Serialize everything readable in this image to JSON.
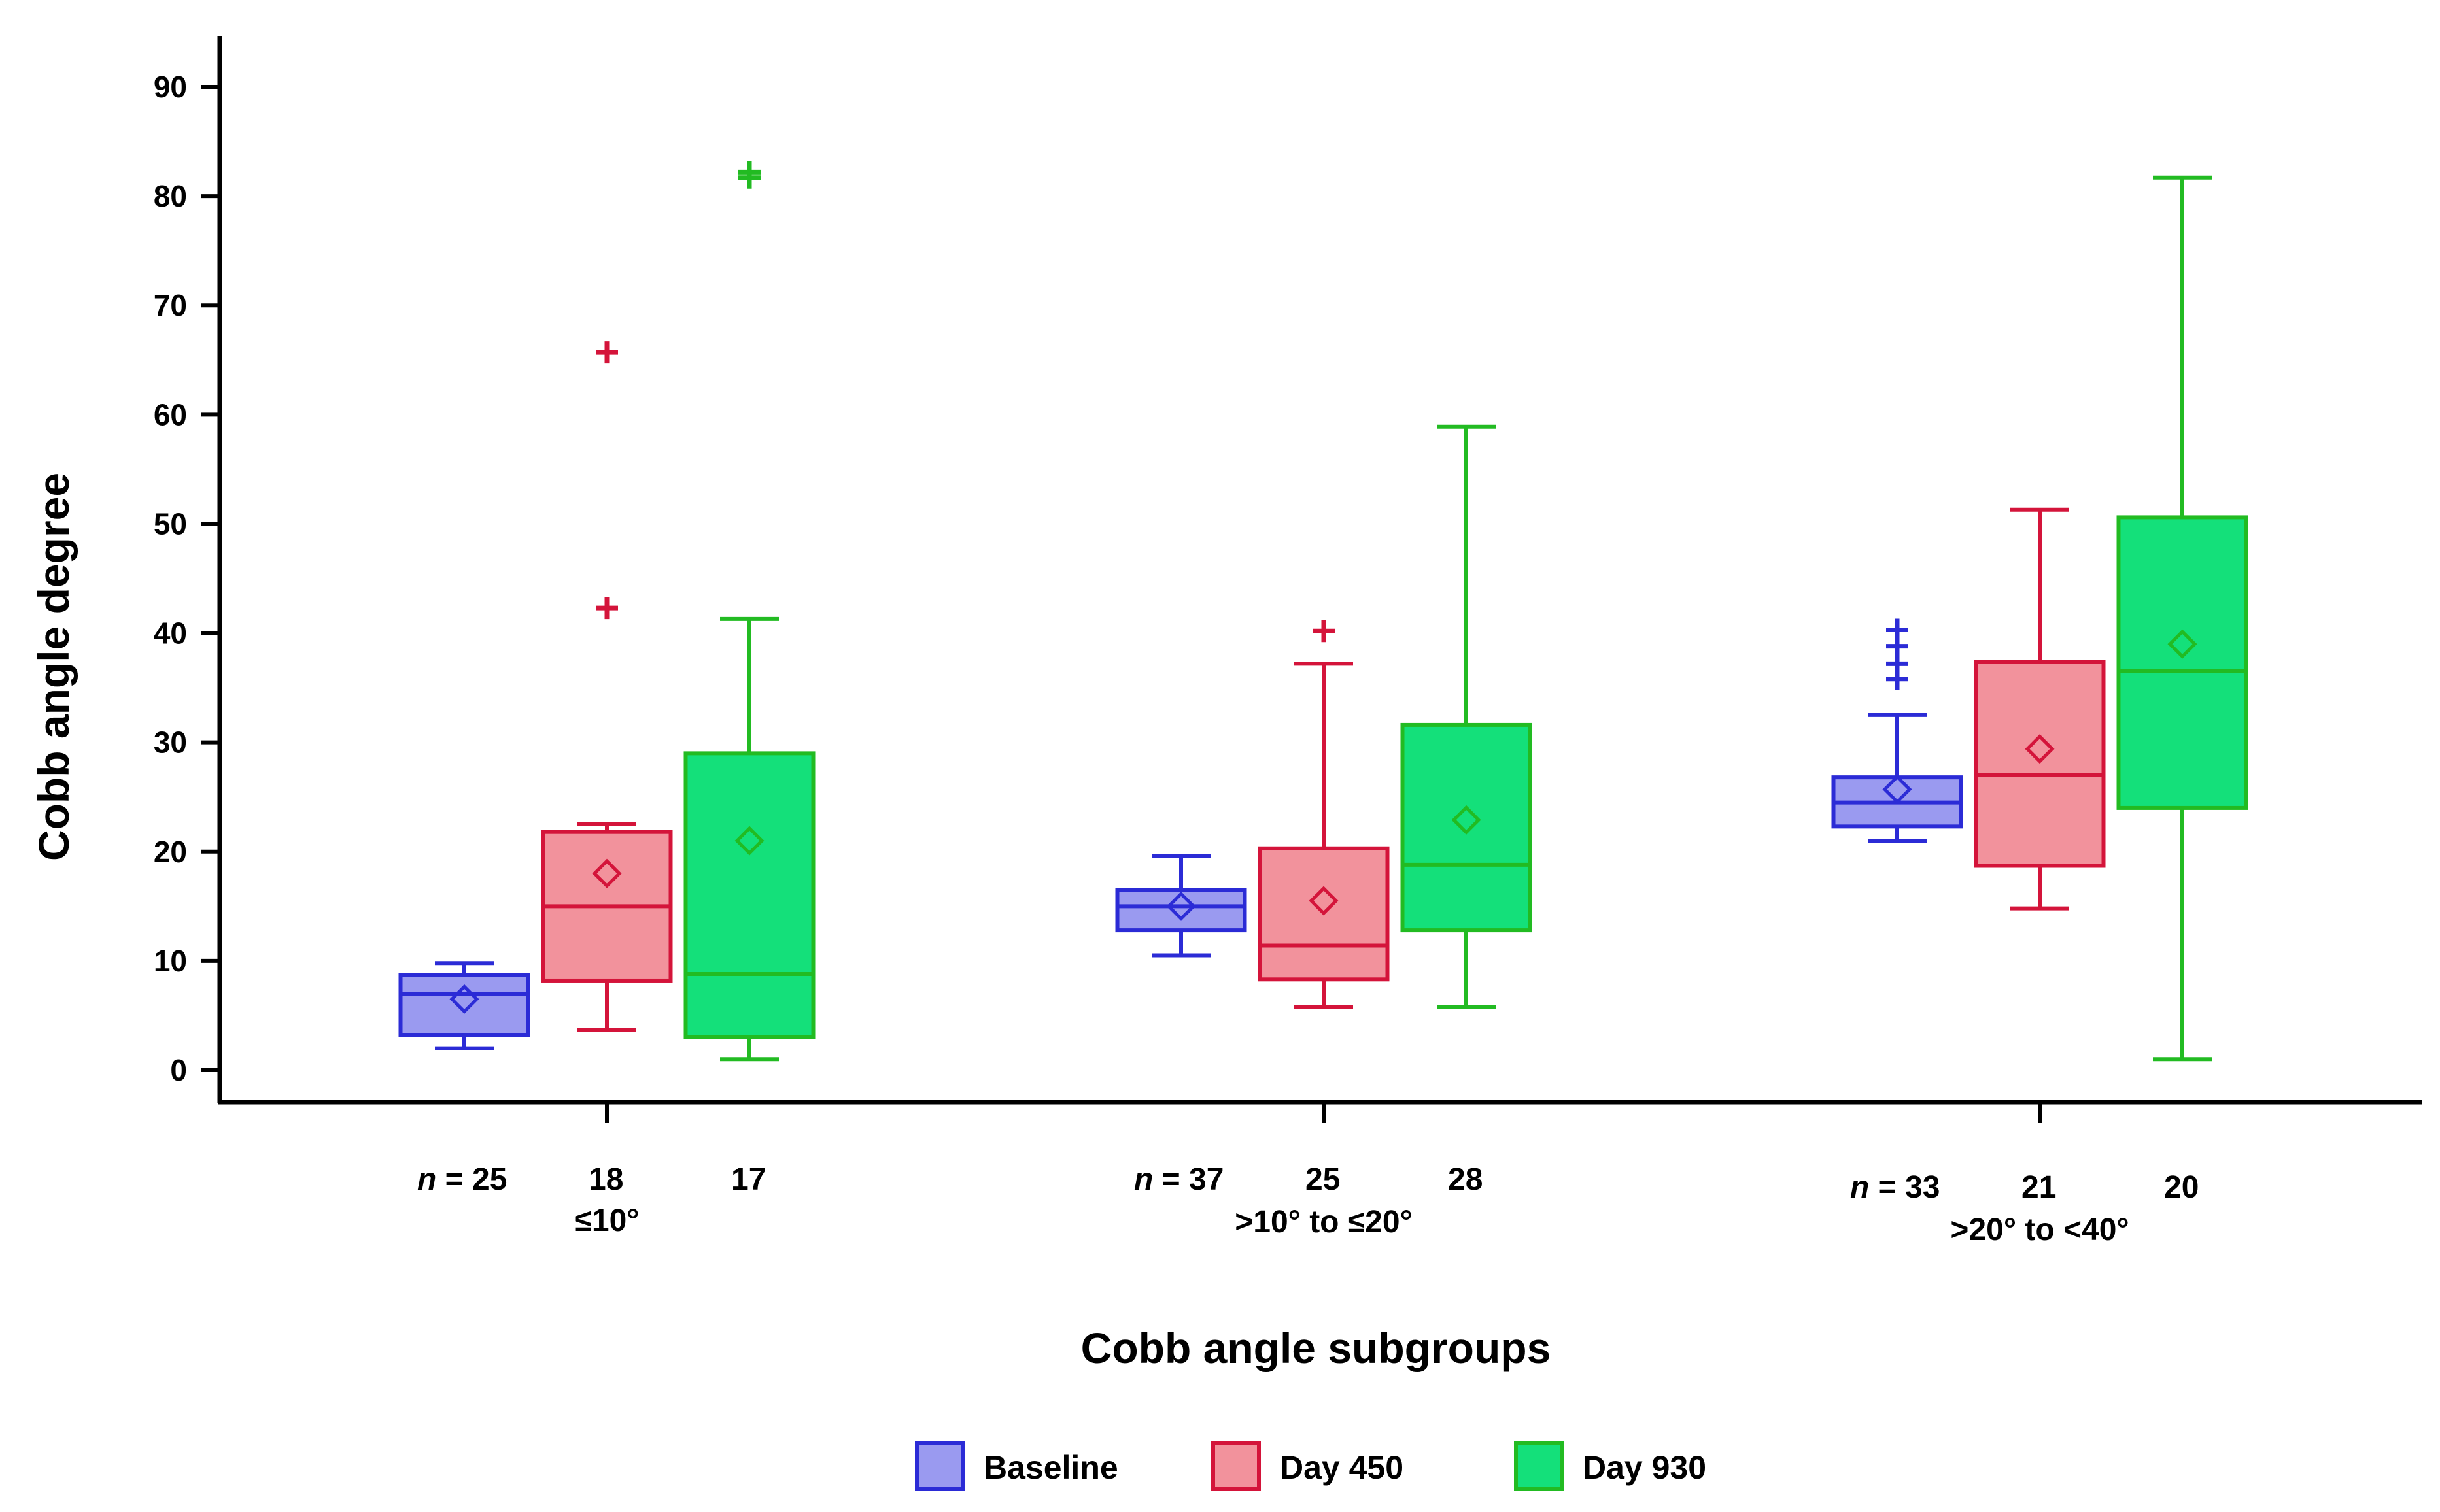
{
  "chart_data": {
    "type": "box",
    "title": "",
    "xlabel": "Cobb angle subgroups",
    "ylabel": "Cobb angle degree",
    "ylim": [
      0,
      90
    ],
    "yticks": [
      0,
      10,
      20,
      30,
      40,
      50,
      60,
      70,
      80,
      90
    ],
    "grid": false,
    "legend_position": "bottom-center",
    "categories": [
      "≤10°",
      ">10° to ≤20°",
      ">20° to <40°"
    ],
    "n_prefix": "n",
    "n_equals": "= ",
    "series": [
      {
        "name": "Baseline",
        "stroke": "#2b2bd6",
        "fill": "#9a9af0",
        "n": [
          "25",
          "37",
          "33"
        ],
        "boxes": [
          {
            "min": 2,
            "q1": 3.2,
            "median": 7,
            "q3": 8.7,
            "max": 9.8,
            "mean": 6.5,
            "outliers": []
          },
          {
            "min": 10.5,
            "q1": 12.8,
            "median": 15,
            "q3": 16.5,
            "max": 19.6,
            "mean": 15,
            "outliers": []
          },
          {
            "min": 21,
            "q1": 22.3,
            "median": 24.5,
            "q3": 26.8,
            "max": 32.5,
            "mean": 25.7,
            "outliers": [
              35.8,
              37.2,
              38.8,
              40.3
            ]
          }
        ]
      },
      {
        "name": "Day 450",
        "stroke": "#d4143a",
        "fill": "#f2929c",
        "n": [
          "18",
          "25",
          "21"
        ],
        "boxes": [
          {
            "min": 3.7,
            "q1": 8.2,
            "median": 15,
            "q3": 21.8,
            "max": 22.5,
            "mean": 18,
            "outliers": [
              42.3,
              65.7
            ]
          },
          {
            "min": 5.8,
            "q1": 8.3,
            "median": 11.4,
            "q3": 20.3,
            "max": 37.2,
            "mean": 15.5,
            "outliers": [
              40.2
            ]
          },
          {
            "min": 14.8,
            "q1": 18.7,
            "median": 27,
            "q3": 37.4,
            "max": 51.3,
            "mean": 29.4,
            "outliers": []
          }
        ]
      },
      {
        "name": "Day 930",
        "stroke": "#22bb22",
        "fill": "#14e07a",
        "n": [
          "17",
          "28",
          "20"
        ],
        "boxes": [
          {
            "min": 1,
            "q1": 3,
            "median": 8.8,
            "q3": 29,
            "max": 41.3,
            "mean": 21,
            "outliers": [
              81.7,
              82.2
            ]
          },
          {
            "min": 5.8,
            "q1": 12.8,
            "median": 18.8,
            "q3": 31.6,
            "max": 58.9,
            "mean": 22.9,
            "outliers": []
          },
          {
            "min": 1,
            "q1": 24,
            "median": 36.5,
            "q3": 50.6,
            "max": 81.7,
            "mean": 39,
            "outliers": []
          }
        ]
      }
    ]
  }
}
